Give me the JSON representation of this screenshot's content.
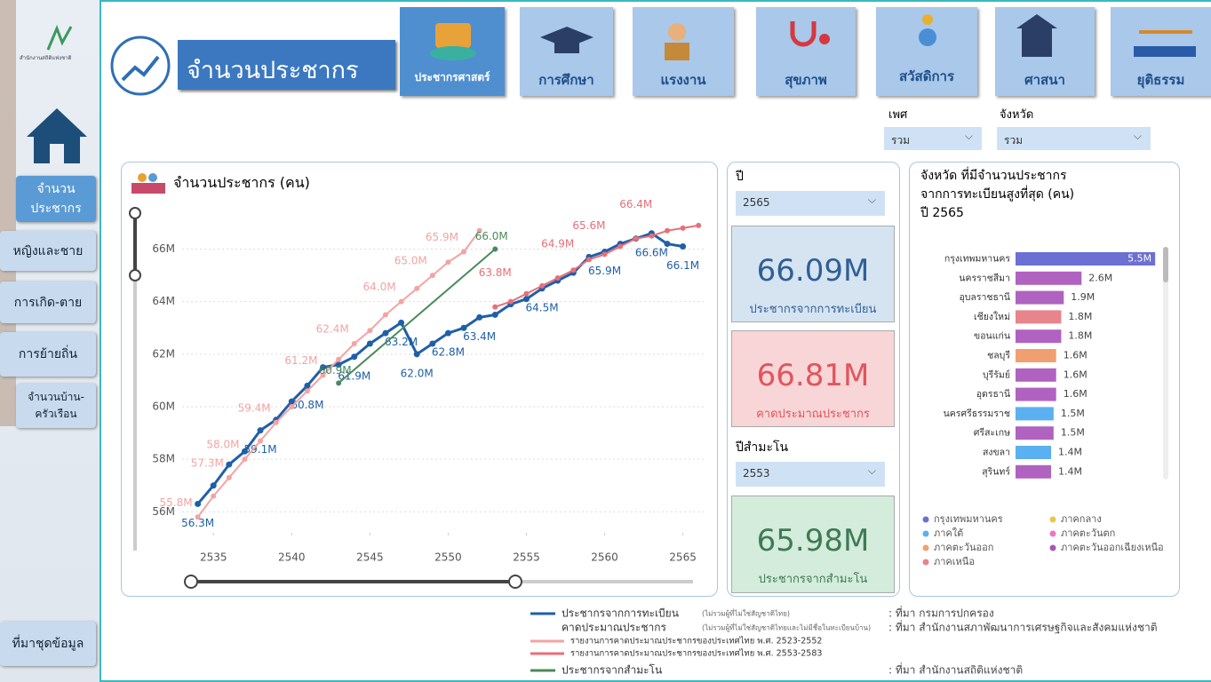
{
  "logo_text": "สำนักงานสถิติแห่งชาติ",
  "header_title": "จำนวนประชากร",
  "tabs": [
    "ประชากรศาสตร์",
    "การศึกษา",
    "แรงงาน",
    "สุขภาพ",
    "สวัสดิการ",
    "ศาสนา",
    "ยุติธรรม"
  ],
  "side_nav": [
    "จำนวน\nประชากร",
    "หญิงและชาย",
    "การเกิด-ตาย",
    "การย้ายถิ่น",
    "จำนวนบ้าน-\nครัวเรือน",
    "ที่มาชุดข้อมูล"
  ],
  "filters": [
    {
      "label": "เพศ",
      "value": "รวม"
    },
    {
      "label": "จังหวัด",
      "value": "รวม"
    }
  ],
  "year_filter": {
    "label": "ปี",
    "value": "2565"
  },
  "census_filter": {
    "label": "ปีสำมะโน",
    "value": "2553"
  },
  "kpis": [
    {
      "value": "66.09M",
      "label": "ประชากรจากการทะเบียน"
    },
    {
      "value": "66.81M",
      "label": "คาดประมาณประชากร"
    },
    {
      "value": "65.98M",
      "label": "ประชากรจากสำมะโน"
    }
  ],
  "chart_data": [
    {
      "type": "line",
      "title": "จำนวนประชากร (คน)",
      "xlim": [
        2533,
        2566.5
      ],
      "xticks": [
        2535,
        2540,
        2545,
        2550,
        2555,
        2560,
        2565
      ],
      "ylim": [
        55.2,
        67.2
      ],
      "yticks": [
        {
          "value": 56,
          "label": "56M"
        },
        {
          "value": 58,
          "label": "58M"
        },
        {
          "value": 60,
          "label": "60M"
        },
        {
          "value": 62,
          "label": "62M"
        },
        {
          "value": 64,
          "label": "64M"
        },
        {
          "value": 66,
          "label": "66M"
        }
      ],
      "grid": true,
      "series": [
        {
          "name": "ประชากรจากการทะเบียน",
          "color": "#1f5fa8",
          "x": [
            2534,
            2535,
            2536,
            2537,
            2538,
            2539,
            2540,
            2541,
            2542,
            2543,
            2544,
            2545,
            2546,
            2547,
            2548,
            2549,
            2550,
            2551,
            2552,
            2553,
            2554,
            2555,
            2556,
            2557,
            2558,
            2559,
            2560,
            2561,
            2562,
            2563,
            2564,
            2565
          ],
          "values": [
            56.3,
            57.0,
            57.8,
            58.3,
            59.1,
            59.5,
            60.2,
            60.8,
            61.5,
            61.6,
            61.9,
            62.4,
            62.8,
            63.2,
            62.0,
            62.4,
            62.8,
            63.0,
            63.4,
            63.5,
            63.9,
            64.1,
            64.5,
            64.8,
            65.1,
            65.7,
            65.9,
            66.2,
            66.4,
            66.6,
            66.2,
            66.1
          ],
          "value_labels": [
            "56.3M",
            null,
            null,
            null,
            "59.1M",
            null,
            null,
            "60.8M",
            null,
            null,
            "61.9M",
            null,
            null,
            "63.2M",
            "62.0M",
            null,
            "62.8M",
            null,
            "63.4M",
            null,
            null,
            null,
            "64.5M",
            null,
            null,
            null,
            "65.9M",
            null,
            null,
            "66.6M",
            null,
            "66.1M"
          ]
        },
        {
          "name": "รายงานการคาดประมาณประชากรของประเทศไทย พ.ศ. 2523-2552",
          "color": "#f4a3a3",
          "x": [
            2534,
            2535,
            2536,
            2537,
            2538,
            2539,
            2540,
            2541,
            2542,
            2543,
            2544,
            2545,
            2546,
            2547,
            2548,
            2549,
            2550,
            2551,
            2552
          ],
          "values": [
            55.8,
            56.6,
            57.3,
            58.0,
            58.7,
            59.4,
            60.0,
            60.6,
            61.2,
            61.8,
            62.4,
            62.9,
            63.5,
            64.0,
            64.5,
            65.0,
            65.5,
            65.9,
            66.7
          ],
          "value_labels": [
            "55.8M",
            null,
            "57.3M",
            "58.0M",
            null,
            "59.4M",
            null,
            null,
            "61.2M",
            null,
            "62.4M",
            null,
            null,
            "64.0M",
            null,
            "65.0M",
            null,
            "65.9M",
            null
          ]
        },
        {
          "name": "รายงานการคาดประมาณประชากรของประเทศไทย พ.ศ. 2553-2583",
          "color": "#e86f78",
          "x": [
            2553,
            2554,
            2555,
            2556,
            2557,
            2558,
            2559,
            2560,
            2561,
            2562,
            2563,
            2564,
            2565,
            2566
          ],
          "values": [
            63.8,
            64.0,
            64.3,
            64.6,
            64.9,
            65.2,
            65.6,
            65.8,
            66.1,
            66.4,
            66.5,
            66.7,
            66.8,
            66.9
          ],
          "value_labels": [
            "63.8M",
            null,
            null,
            null,
            "64.9M",
            null,
            "65.6M",
            null,
            null,
            "66.4M",
            null,
            null,
            null,
            null
          ]
        },
        {
          "name": "ประชากรจากสำมะโน",
          "color": "#4a8a5c",
          "x": [
            2543,
            2553
          ],
          "values": [
            60.9,
            66.0
          ],
          "value_labels": [
            "60.9M",
            "66.0M"
          ]
        }
      ]
    },
    {
      "type": "bar",
      "orientation": "horizontal",
      "title": "จังหวัด ที่มีจำนวนประชากร\nจากการทะเบียนสูงที่สุด (คน)\nปี 2565",
      "categories": [
        "กรุงเทพมหานคร",
        "นครราชสีมา",
        "อุบลราชธานี",
        "เชียงใหม่",
        "ขอนแก่น",
        "ชลบุรี",
        "บุรีรัมย์",
        "อุดรธานี",
        "นครศรีธรรมราช",
        "ศรีสะเกษ",
        "สงขลา",
        "สุรินทร์"
      ],
      "values": [
        5.5,
        2.6,
        1.9,
        1.8,
        1.8,
        1.6,
        1.6,
        1.6,
        1.5,
        1.5,
        1.4,
        1.4
      ],
      "value_labels": [
        "5.5M",
        "2.6M",
        "1.9M",
        "1.8M",
        "1.8M",
        "1.6M",
        "1.6M",
        "1.6M",
        "1.5M",
        "1.5M",
        "1.4M",
        "1.4M"
      ],
      "colors": [
        "#6b70d2",
        "#b062c0",
        "#b062c0",
        "#e8848c",
        "#b062c0",
        "#f0a070",
        "#b062c0",
        "#b062c0",
        "#5ab0f0",
        "#b062c0",
        "#5ab0f0",
        "#b062c0"
      ],
      "xlim": [
        0,
        5.6
      ],
      "legend": [
        {
          "name": "กรุงเทพมหานคร",
          "color": "#6b70d2"
        },
        {
          "name": "ภาคกลาง",
          "color": "#e8c84a"
        },
        {
          "name": "ภาคใต้",
          "color": "#5ab0f0"
        },
        {
          "name": "ภาคตะวันตก",
          "color": "#e878c8"
        },
        {
          "name": "ภาคตะวันออก",
          "color": "#f0a070"
        },
        {
          "name": "ภาคตะวันออกเฉียงเหนือ",
          "color": "#a855b8"
        },
        {
          "name": "ภาคเหนือ",
          "color": "#e8848c"
        }
      ]
    }
  ],
  "footer": {
    "group_label": "คาดประมาณประชากร",
    "notes": [
      "(ไม่รวมผู้ที่ไม่ใช่สัญชาติไทย)",
      "(ไม่รวมผู้ที่ไม่ใช่สัญชาติไทยและไม่มีชื่อในทะเบียนบ้าน)"
    ],
    "sources": [
      ": ที่มา กรมการปกครอง",
      ": ที่มา สำนักงานสภาพัฒนาการเศรษฐกิจและสังคมแห่งชาติ",
      ": ที่มา สำนักงานสถิติแห่งชาติ"
    ]
  }
}
